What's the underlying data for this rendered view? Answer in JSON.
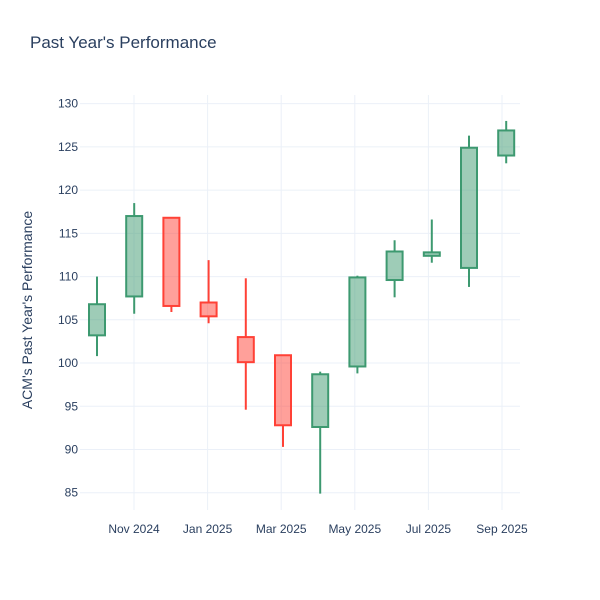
{
  "chart_data": {
    "type": "candlestick",
    "title": "Past Year's Performance",
    "xlabel": "",
    "ylabel": "ACM's Past Year's Performance",
    "ylim": [
      83,
      131
    ],
    "y_ticks": [
      85,
      90,
      95,
      100,
      105,
      110,
      115,
      120,
      125,
      130
    ],
    "x_ticks": [
      "Nov 2024",
      "Jan 2025",
      "Mar 2025",
      "May 2025",
      "Jul 2025",
      "Sep 2025"
    ],
    "increasing_color": "#3d9970",
    "decreasing_color": "#ff4136",
    "candles": [
      {
        "open": 103.2,
        "high": 110.0,
        "low": 100.8,
        "close": 106.8
      },
      {
        "open": 107.7,
        "high": 118.5,
        "low": 105.7,
        "close": 117.0
      },
      {
        "open": 116.8,
        "high": 116.8,
        "low": 105.9,
        "close": 106.6
      },
      {
        "open": 107.0,
        "high": 111.9,
        "low": 104.6,
        "close": 105.4
      },
      {
        "open": 103.0,
        "high": 109.8,
        "low": 94.6,
        "close": 100.1
      },
      {
        "open": 100.9,
        "high": 100.9,
        "low": 90.3,
        "close": 92.8
      },
      {
        "open": 92.6,
        "high": 99.0,
        "low": 84.9,
        "close": 98.7
      },
      {
        "open": 99.6,
        "high": 110.1,
        "low": 98.8,
        "close": 109.9
      },
      {
        "open": 109.6,
        "high": 114.2,
        "low": 107.6,
        "close": 112.9
      },
      {
        "open": 112.4,
        "high": 116.6,
        "low": 111.6,
        "close": 112.8
      },
      {
        "open": 111.0,
        "high": 126.3,
        "low": 108.8,
        "close": 124.9
      },
      {
        "open": 124.0,
        "high": 128.0,
        "low": 123.1,
        "close": 126.9
      }
    ]
  }
}
